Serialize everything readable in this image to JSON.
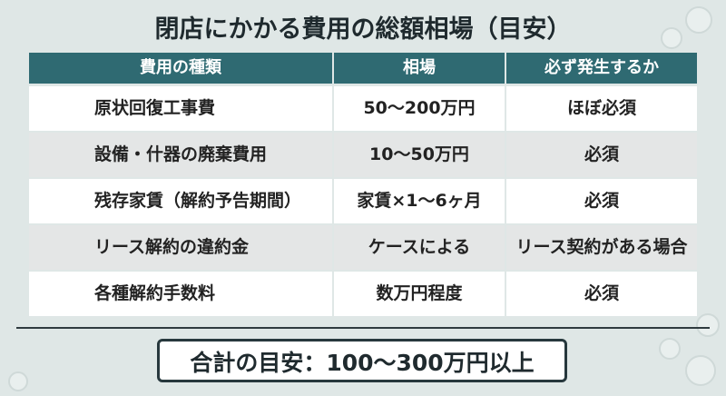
{
  "header": {
    "title": "閉店にかかる費用の総額相場（目安）"
  },
  "table": {
    "columns": [
      "費用の種類",
      "相場",
      "必ず発生するか"
    ],
    "rows": [
      [
        "原状回復工事費",
        "50〜200万円",
        "ほぼ必須"
      ],
      [
        "設備・什器の廃棄費用",
        "10〜50万円",
        "必須"
      ],
      [
        "残存家賃（解約予告期間）",
        "家賃×1〜6ヶ月",
        "必須"
      ],
      [
        "リース解約の違約金",
        "ケースによる",
        "リース契約がある場合"
      ],
      [
        "各種解約手数料",
        "数万円程度",
        "必須"
      ]
    ]
  },
  "total": "合計の目安：100〜300万円以上"
}
